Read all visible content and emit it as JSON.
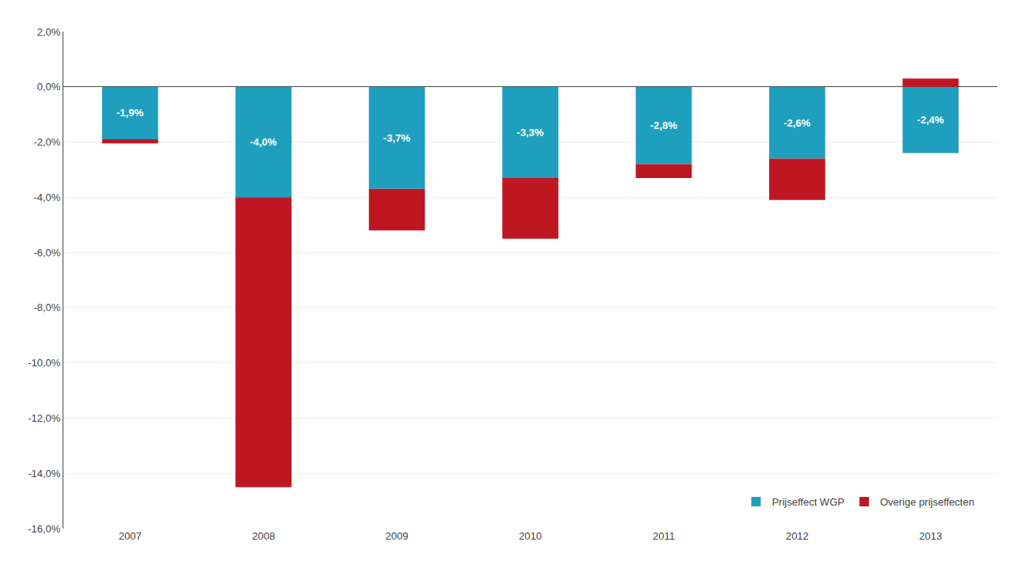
{
  "chart_data": {
    "type": "bar",
    "categories": [
      "2007",
      "2008",
      "2009",
      "2010",
      "2011",
      "2012",
      "2013"
    ],
    "stacked": true,
    "series": [
      {
        "name": "Prijseffect WGP",
        "color": "#1e9fbe",
        "values": [
          -1.9,
          -4.0,
          -3.7,
          -3.3,
          -2.8,
          -2.6,
          -2.4
        ],
        "data_labels": true,
        "value_labels": [
          "-1,9%",
          "-4,0%",
          "-3,7%",
          "-3,3%",
          "-2,8%",
          "-2,6%",
          "-2,4%"
        ]
      },
      {
        "name": "Overige prijseffecten",
        "color": "#bf1722",
        "values": [
          -0.15,
          -10.5,
          -1.5,
          -2.2,
          -0.5,
          -1.5,
          0.3
        ]
      }
    ],
    "ylim": [
      -16.0,
      2.0
    ],
    "yticks": [
      {
        "value": 2.0,
        "label": "2,0%"
      },
      {
        "value": 0.0,
        "label": "0,0%"
      },
      {
        "value": -2.0,
        "label": "-2,0%"
      },
      {
        "value": -4.0,
        "label": "-4,0%"
      },
      {
        "value": -6.0,
        "label": "-6,0%"
      },
      {
        "value": -8.0,
        "label": "-8,0%"
      },
      {
        "value": -10.0,
        "label": "-10,0%"
      },
      {
        "value": -12.0,
        "label": "-12,0%"
      },
      {
        "value": -14.0,
        "label": "-14,0%"
      },
      {
        "value": -16.0,
        "label": "-16,0%"
      }
    ],
    "grid": true,
    "legend": "lower right"
  }
}
